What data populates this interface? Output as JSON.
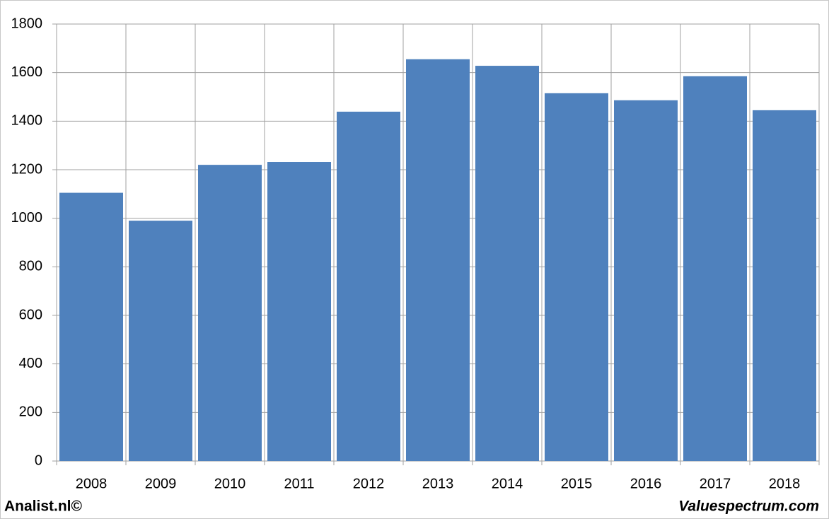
{
  "chart_data": {
    "type": "bar",
    "categories": [
      "2008",
      "2009",
      "2010",
      "2011",
      "2012",
      "2013",
      "2014",
      "2015",
      "2016",
      "2017",
      "2018"
    ],
    "values": [
      1105,
      990,
      1220,
      1232,
      1439,
      1655,
      1628,
      1515,
      1486,
      1585,
      1445
    ],
    "color": "#4f81bd",
    "ylim": [
      0,
      1800
    ],
    "yticks": [
      0,
      200,
      400,
      600,
      800,
      1000,
      1200,
      1400,
      1600,
      1800
    ],
    "grid": true
  },
  "footer": {
    "left": "Analist.nl©",
    "right": "Valuespectrum.com"
  }
}
